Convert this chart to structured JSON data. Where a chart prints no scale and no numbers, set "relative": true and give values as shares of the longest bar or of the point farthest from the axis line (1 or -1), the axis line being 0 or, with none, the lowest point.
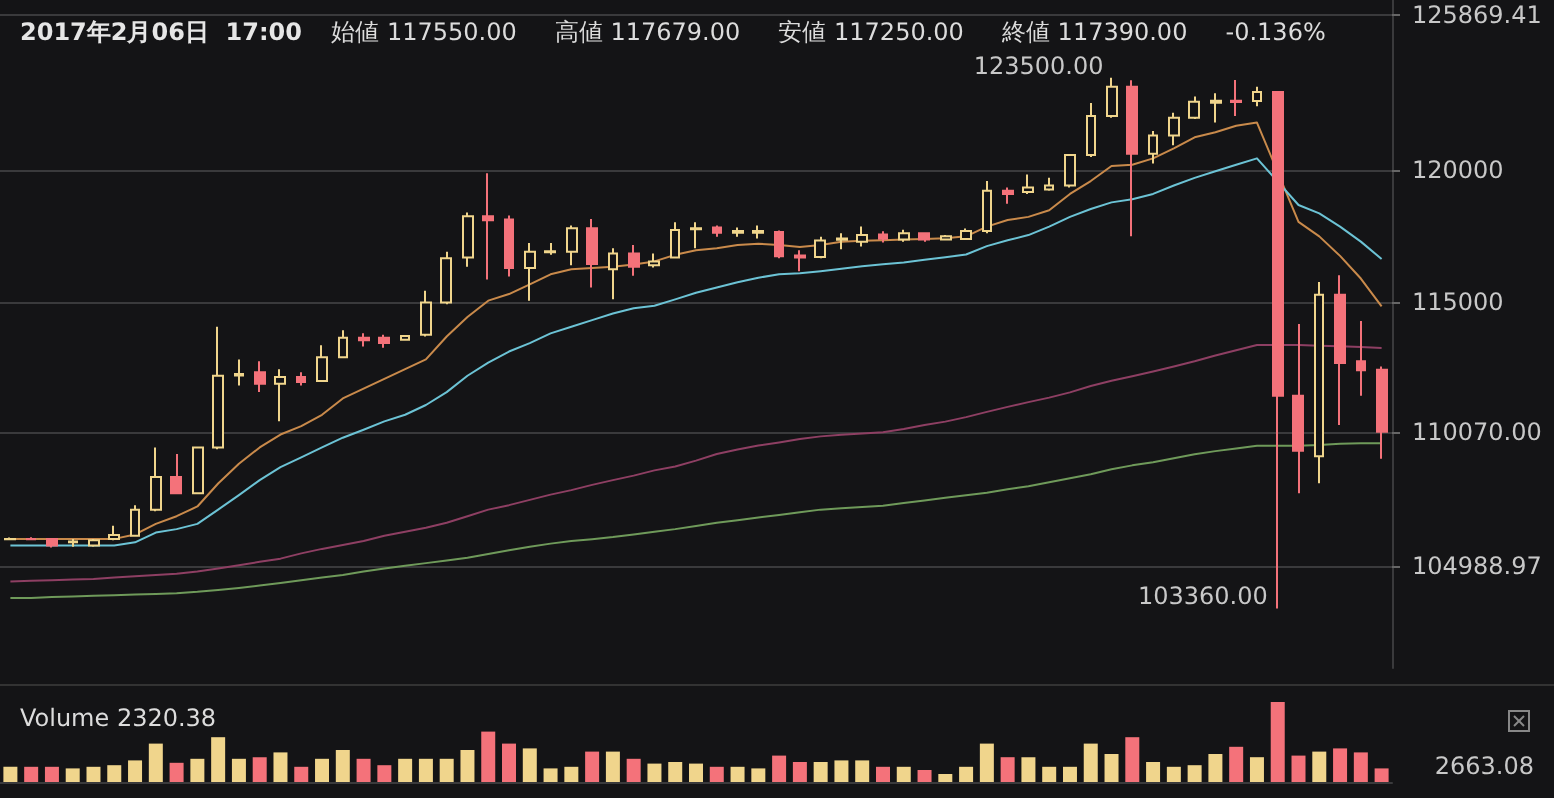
{
  "chart_data": [
    {
      "type": "candlestick",
      "title": "2017年2月06日  17:00",
      "subtitle": "始値 117550.00     高値 117679.00     安値 117250.00     終値 117390.00     -0.136%",
      "annotations": [
        "123500.00",
        "103360.00"
      ],
      "categories": [
        null,
        null,
        null,
        null,
        null,
        null,
        null,
        null,
        null,
        null,
        null,
        null,
        null,
        null,
        null,
        null,
        null,
        null,
        null,
        null,
        null,
        null,
        null,
        null,
        null,
        null,
        null,
        null,
        null,
        null,
        null,
        null,
        null,
        null,
        null,
        null,
        null,
        null,
        null,
        null,
        null,
        null,
        null,
        null,
        null,
        null,
        null,
        null,
        null,
        null,
        null,
        null,
        null,
        null,
        null,
        null,
        null,
        null,
        null,
        null,
        null,
        null,
        null,
        null,
        null,
        null,
        null
      ],
      "ylim": [
        101100,
        126450
      ],
      "yticks": [
        {
          "value": 104988.97,
          "label": "104988.97"
        },
        {
          "value": 110070,
          "label": "110070.00"
        },
        115000,
        120000,
        {
          "value": 125869.41,
          "label": "125869.41"
        }
      ],
      "grid": "y",
      "series": [
        {
          "colors": [
            "#f0d58c",
            "#f4727a",
            "#f4727a",
            "#f0d58c",
            "#f0d58c",
            "#f0d58c",
            "#f0d58c",
            "#f0d58c",
            "#f4727a",
            "#f0d58c",
            "#f0d58c",
            "#f0d58c",
            "#f4727a",
            "#f0d58c",
            "#f4727a",
            "#f0d58c",
            "#f0d58c",
            "#f4727a",
            "#f4727a",
            "#f0d58c",
            "#f0d58c",
            "#f0d58c",
            "#f0d58c",
            "#f4727a",
            "#f4727a",
            "#f0d58c",
            "#f0d58c",
            "#f0d58c",
            "#f4727a",
            "#f0d58c",
            "#f4727a",
            "#f0d58c",
            "#f0d58c",
            "#f0d58c",
            "#f4727a",
            "#f0d58c",
            "#f0d58c",
            "#f4727a",
            "#f4727a",
            "#f0d58c",
            "#f0d58c",
            "#f0d58c",
            "#f4727a",
            "#f0d58c",
            "#f4727a",
            "#f0d58c",
            "#f0d58c",
            "#f0d58c",
            "#f4727a",
            "#f0d58c",
            "#f0d58c",
            "#f0d58c",
            "#f0d58c",
            "#f0d58c",
            "#f4727a",
            "#f0d58c",
            "#f0d58c",
            "#f0d58c",
            "#f0d58c",
            "#f4727a",
            "#f0d58c",
            "#f4727a",
            "#f4727a",
            "#f0d58c",
            "#f4727a",
            "#f4727a",
            "#f4727a"
          ],
          "ohlc": [
            [
              105990,
              106050,
              105950,
              106000
            ],
            [
              106000,
              106060,
              105950,
              105990
            ],
            [
              106000,
              106000,
              105670,
              105750
            ],
            [
              105870,
              106000,
              105700,
              105900
            ],
            [
              105750,
              106000,
              105700,
              105950
            ],
            [
              106000,
              106500,
              105950,
              106150
            ],
            [
              106120,
              107280,
              106100,
              107110
            ],
            [
              107110,
              109470,
              107050,
              108350
            ],
            [
              108350,
              109220,
              107700,
              107730
            ],
            [
              107730,
              109500,
              107700,
              109470
            ],
            [
              109470,
              114050,
              109400,
              112190
            ],
            [
              112200,
              112810,
              111820,
              112260
            ],
            [
              112320,
              112740,
              111570,
              111890
            ],
            [
              111890,
              112440,
              110460,
              112140
            ],
            [
              112140,
              112320,
              111820,
              111950
            ],
            [
              111990,
              113350,
              111990,
              112890
            ],
            [
              112890,
              113920,
              112890,
              113630
            ],
            [
              113630,
              113800,
              113300,
              113540
            ],
            [
              113630,
              113750,
              113250,
              113430
            ],
            [
              113560,
              113700,
              113560,
              113700
            ],
            [
              113750,
              115420,
              113680,
              114970
            ],
            [
              114970,
              116900,
              114900,
              116650
            ],
            [
              116680,
              118390,
              116330,
              118240
            ],
            [
              118240,
              119880,
              115840,
              118090
            ],
            [
              118120,
              118270,
              115960,
              116280
            ],
            [
              116280,
              117230,
              115040,
              116900
            ],
            [
              116880,
              117230,
              116780,
              116920
            ],
            [
              116900,
              117890,
              116380,
              117790
            ],
            [
              117790,
              118140,
              115540,
              116430
            ],
            [
              116230,
              117030,
              115090,
              116830
            ],
            [
              116830,
              117150,
              115990,
              116330
            ],
            [
              116380,
              116830,
              116300,
              116530
            ],
            [
              116680,
              118020,
              116680,
              117720
            ],
            [
              117750,
              118020,
              117030,
              117790
            ],
            [
              117820,
              117890,
              117470,
              117620
            ],
            [
              117620,
              117820,
              117470,
              117680
            ],
            [
              117620,
              117890,
              117400,
              117680
            ],
            [
              117650,
              117700,
              116650,
              116730
            ],
            [
              116750,
              116950,
              116160,
              116680
            ],
            [
              116700,
              117470,
              116650,
              117320
            ],
            [
              117350,
              117600,
              116990,
              117400
            ],
            [
              117280,
              117850,
              117100,
              117530
            ],
            [
              117550,
              117679,
              117250,
              117390
            ],
            [
              117360,
              117730,
              117280,
              117600
            ],
            [
              117600,
              117600,
              117280,
              117360
            ],
            [
              117360,
              117530,
              117360,
              117480
            ],
            [
              117380,
              117780,
              117380,
              117680
            ],
            [
              117680,
              119580,
              117600,
              119210
            ],
            [
              119210,
              119330,
              118720,
              119090
            ],
            [
              119160,
              119830,
              119090,
              119330
            ],
            [
              119260,
              119700,
              119210,
              119410
            ],
            [
              119410,
              120570,
              119330,
              120570
            ],
            [
              120570,
              122540,
              120490,
              122050
            ],
            [
              122050,
              123500,
              121980,
              123160
            ],
            [
              123160,
              123400,
              117480,
              120620
            ],
            [
              120620,
              121480,
              120250,
              121310
            ],
            [
              121310,
              122170,
              120940,
              121980
            ],
            [
              121980,
              122790,
              121930,
              122590
            ],
            [
              122550,
              122910,
              121800,
              122630
            ],
            [
              122630,
              123410,
              122050,
              122580
            ],
            [
              122620,
              123160,
              122420,
              122960
            ],
            [
              122960,
              122960,
              103360,
              111430
            ],
            [
              111430,
              114150,
              107730,
              109340
            ],
            [
              109140,
              115750,
              108110,
              115260
            ],
            [
              115260,
              116000,
              110320,
              112670
            ],
            [
              112740,
              114270,
              111430,
              112400
            ],
            [
              112420,
              112540,
              109040,
              110070
            ]
          ]
        },
        {
          "type": "line",
          "color": "#c98a4b",
          "values": [
            106000,
            106000,
            106000,
            106000,
            106000,
            106000,
            106170,
            106570,
            106860,
            107230,
            108100,
            108850,
            109470,
            109960,
            110280,
            110710,
            111330,
            111700,
            112070,
            112440,
            112810,
            113680,
            114420,
            115040,
            115290,
            115660,
            116040,
            116230,
            116280,
            116330,
            116410,
            116530,
            116780,
            116950,
            117030,
            117150,
            117200,
            117150,
            117080,
            117150,
            117280,
            117310,
            117330,
            117360,
            117380,
            117410,
            117480,
            117850,
            118100,
            118220,
            118470,
            119090,
            119580,
            120150,
            120200,
            120440,
            120820,
            121240,
            121430,
            121680,
            121800,
            null,
            118030,
            117480,
            116740,
            115880,
            114820
          ]
        },
        {
          "type": "line",
          "color": "#6cc3d5",
          "values": [
            105750,
            105750,
            105750,
            105750,
            105750,
            105750,
            105870,
            106240,
            106370,
            106570,
            107110,
            107660,
            108230,
            108720,
            109090,
            109470,
            109840,
            110140,
            110460,
            110710,
            111080,
            111570,
            112190,
            112690,
            113110,
            113430,
            113800,
            114050,
            114300,
            114550,
            114750,
            114850,
            115090,
            115340,
            115540,
            115740,
            115910,
            116040,
            116080,
            116160,
            116250,
            116350,
            116420,
            116490,
            116590,
            116690,
            116790,
            117110,
            117330,
            117530,
            117850,
            118220,
            118520,
            118770,
            118890,
            119090,
            119410,
            119700,
            119950,
            120200,
            120440,
            null,
            118670,
            118350,
            117850,
            117280,
            116620
          ]
        },
        {
          "type": "line",
          "color": "#8e3f63",
          "values": [
            104380,
            104410,
            104430,
            104460,
            104480,
            104530,
            104580,
            104630,
            104680,
            104760,
            104880,
            105000,
            105130,
            105250,
            105450,
            105620,
            105770,
            105920,
            106120,
            106270,
            106420,
            106610,
            106860,
            107110,
            107280,
            107480,
            107680,
            107850,
            108050,
            108230,
            108400,
            108600,
            108750,
            108970,
            109220,
            109390,
            109540,
            109660,
            109790,
            109890,
            109950,
            110000,
            110050,
            110170,
            110320,
            110450,
            110620,
            110820,
            111010,
            111190,
            111360,
            111560,
            111800,
            112000,
            112170,
            112350,
            112540,
            112740,
            112960,
            113160,
            113360,
            null,
            113360,
            113330,
            113310,
            113280,
            113240
          ]
        },
        {
          "type": "line",
          "color": "#6f9a5a",
          "values": [
            103760,
            103760,
            103790,
            103810,
            103840,
            103860,
            103890,
            103910,
            103940,
            103990,
            104060,
            104140,
            104230,
            104330,
            104430,
            104530,
            104630,
            104760,
            104880,
            104980,
            105080,
            105180,
            105280,
            105430,
            105570,
            105700,
            105820,
            105920,
            105990,
            106070,
            106170,
            106270,
            106370,
            106490,
            106610,
            106710,
            106810,
            106910,
            107010,
            107110,
            107160,
            107210,
            107260,
            107360,
            107460,
            107560,
            107660,
            107750,
            107880,
            108000,
            108150,
            108300,
            108450,
            108640,
            108790,
            108910,
            109060,
            109210,
            109330,
            109430,
            109530,
            109530,
            109530,
            109560,
            109610,
            109630,
            109630
          ]
        }
      ]
    },
    {
      "type": "bar",
      "relative": true,
      "annotations": [
        "Volume 2320.38",
        "2663.08"
      ],
      "categories": [
        null,
        null,
        null,
        null,
        null,
        null,
        null,
        null,
        null,
        null,
        null,
        null,
        null,
        null,
        null,
        null,
        null,
        null,
        null,
        null,
        null,
        null,
        null,
        null,
        null,
        null,
        null,
        null,
        null,
        null,
        null,
        null,
        null,
        null,
        null,
        null,
        null,
        null,
        null,
        null,
        null,
        null,
        null,
        null,
        null,
        null,
        null,
        null,
        null,
        null,
        null,
        null,
        null,
        null,
        null,
        null,
        null,
        null,
        null,
        null,
        null,
        null,
        null,
        null,
        null,
        null,
        null
      ],
      "values": [
        0.19,
        0.19,
        0.19,
        0.17,
        0.19,
        0.21,
        0.27,
        0.48,
        0.24,
        0.29,
        0.56,
        0.29,
        0.31,
        0.37,
        0.19,
        0.29,
        0.4,
        0.29,
        0.21,
        0.29,
        0.29,
        0.29,
        0.4,
        0.63,
        0.48,
        0.42,
        0.17,
        0.19,
        0.38,
        0.38,
        0.29,
        0.23,
        0.25,
        0.23,
        0.19,
        0.19,
        0.17,
        0.33,
        0.25,
        0.25,
        0.27,
        0.27,
        0.19,
        0.19,
        0.15,
        0.1,
        0.19,
        0.48,
        0.31,
        0.31,
        0.19,
        0.19,
        0.48,
        0.35,
        0.56,
        0.25,
        0.19,
        0.21,
        0.35,
        0.44,
        0.31,
        1,
        0.33,
        0.38,
        0.42,
        0.37,
        0.17
      ],
      "colors": [
        "#f0d58c",
        "#f4727a",
        "#f4727a",
        "#f0d58c",
        "#f0d58c",
        "#f0d58c",
        "#f0d58c",
        "#f0d58c",
        "#f4727a",
        "#f0d58c",
        "#f0d58c",
        "#f0d58c",
        "#f4727a",
        "#f0d58c",
        "#f4727a",
        "#f0d58c",
        "#f0d58c",
        "#f4727a",
        "#f4727a",
        "#f0d58c",
        "#f0d58c",
        "#f0d58c",
        "#f0d58c",
        "#f4727a",
        "#f4727a",
        "#f0d58c",
        "#f0d58c",
        "#f0d58c",
        "#f4727a",
        "#f0d58c",
        "#f4727a",
        "#f0d58c",
        "#f0d58c",
        "#f0d58c",
        "#f4727a",
        "#f0d58c",
        "#f0d58c",
        "#f4727a",
        "#f4727a",
        "#f0d58c",
        "#f0d58c",
        "#f0d58c",
        "#f4727a",
        "#f0d58c",
        "#f4727a",
        "#f0d58c",
        "#f0d58c",
        "#f0d58c",
        "#f4727a",
        "#f0d58c",
        "#f0d58c",
        "#f0d58c",
        "#f0d58c",
        "#f0d58c",
        "#f4727a",
        "#f0d58c",
        "#f0d58c",
        "#f0d58c",
        "#f0d58c",
        "#f4727a",
        "#f0d58c",
        "#f4727a",
        "#f4727a",
        "#f0d58c",
        "#f4727a",
        "#f4727a",
        "#f4727a"
      ]
    }
  ]
}
